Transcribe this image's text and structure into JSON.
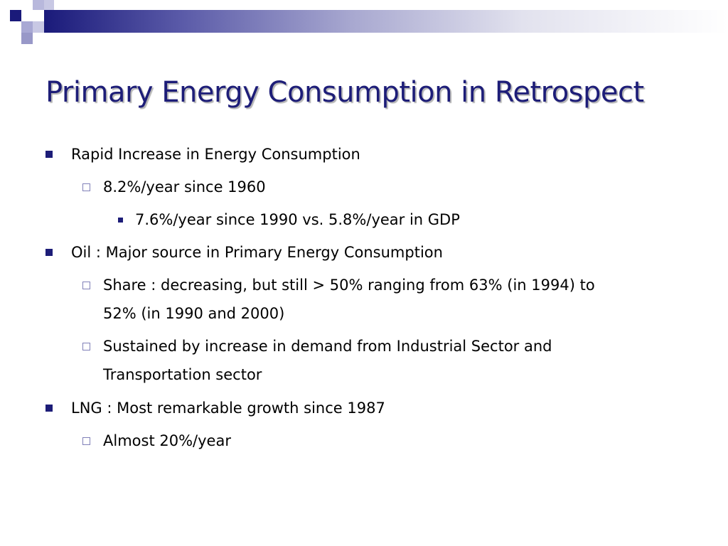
{
  "title": "Primary Energy Consumption in Retrospect",
  "colors": {
    "title": "#1d1d78",
    "bullet": "#1d1d78",
    "band_dark": "#1a1a7a",
    "square_light": "#9898c8"
  },
  "bullets": [
    {
      "level": 1,
      "text": "Rapid Increase in Energy Consumption"
    },
    {
      "level": 2,
      "text": "8.2%/year since 1960"
    },
    {
      "level": 3,
      "text": "7.6%/year since 1990 vs. 5.8%/year in GDP"
    },
    {
      "level": 1,
      "text": "Oil : Major source in Primary Energy Consumption"
    },
    {
      "level": 2,
      "text": "Share : decreasing, but still >  50% ranging from 63% (in 1994) to",
      "continuation": "52% (in 1990 and 2000)"
    },
    {
      "level": 2,
      "text": "Sustained by increase in demand from Industrial Sector  and",
      "continuation": "Transportation sector"
    },
    {
      "level": 1,
      "text": "LNG : Most remarkable growth since 1987"
    },
    {
      "level": 2,
      "text": "Almost 20%/year"
    }
  ]
}
